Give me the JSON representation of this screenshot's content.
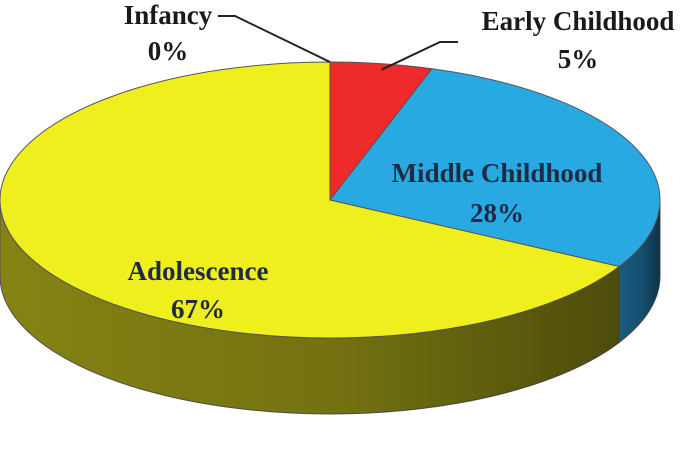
{
  "chart_data": {
    "type": "pie",
    "style": "3d",
    "categories": [
      "Infancy",
      "Early Childhood",
      "Middle Childhood",
      "Adolescence"
    ],
    "values": [
      0,
      5,
      28,
      67
    ],
    "value_labels": [
      "0%",
      "5%",
      "28%",
      "67%"
    ],
    "colors": [
      "#c0c0c0",
      "#ee2a2a",
      "#29a9e1",
      "#f0ef1e"
    ],
    "side_colors": [
      "#909090",
      "#a11b1b",
      "#1a5f86",
      "#8c8a14"
    ],
    "legend": "none",
    "title": ""
  }
}
